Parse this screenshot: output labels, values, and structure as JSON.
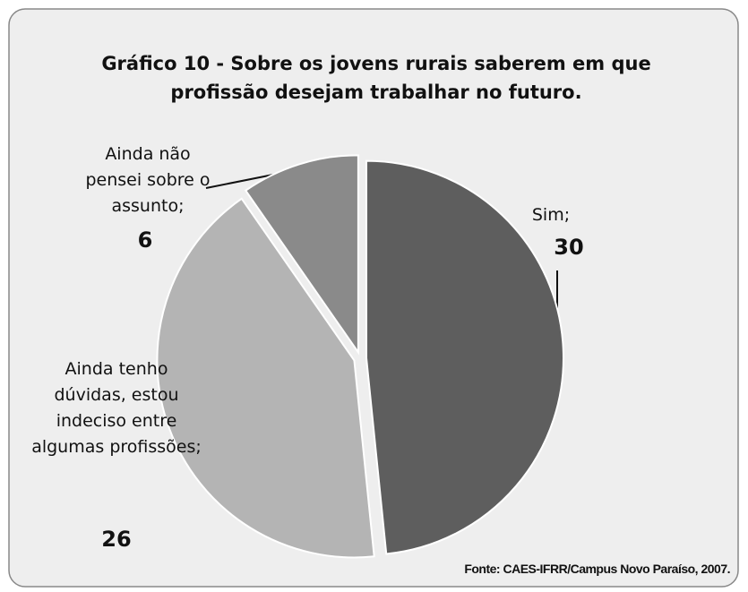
{
  "chart_data": {
    "type": "pie",
    "title": "Gráfico  10 - Sobre os jovens rurais saberem em que profissão desejam trabalhar no futuro.",
    "categories": [
      "Sim;",
      "Ainda tenho dúvidas, estou indeciso entre algumas profissões;",
      "Ainda não pensei sobre o assunto;"
    ],
    "values": [
      30,
      26,
      6
    ],
    "colors": [
      "#5e5e5e",
      "#b4b4b4",
      "#8a8a8a"
    ],
    "source": "Fonte: CAES-IFRR/Campus Novo Paraíso, 2007."
  }
}
